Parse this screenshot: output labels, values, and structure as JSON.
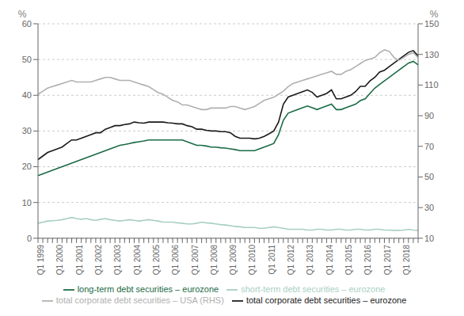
{
  "chart_data": {
    "type": "line",
    "ylabel": "%",
    "y2label": "%",
    "categories": [
      "Q1 1999",
      null,
      null,
      null,
      "Q1 2000",
      null,
      null,
      null,
      "Q1 2001",
      null,
      null,
      null,
      "Q1 2002",
      null,
      null,
      null,
      "Q1 2003",
      null,
      null,
      null,
      "Q1 2004",
      null,
      null,
      null,
      "Q1 2005",
      null,
      null,
      null,
      "Q1 2006",
      null,
      null,
      null,
      "Q1 2007",
      null,
      null,
      null,
      "Q1 2008",
      null,
      null,
      null,
      "Q1 2009",
      null,
      null,
      null,
      "Q1 2010",
      null,
      null,
      null,
      "Q1 2011",
      null,
      null,
      null,
      "Q1 2012",
      null,
      null,
      null,
      "Q1 2013",
      null,
      null,
      null,
      "Q1 2014",
      null,
      null,
      null,
      "Q1 2015",
      null,
      null,
      null,
      "Q1 2016",
      null,
      null,
      null,
      "Q1 2017",
      null,
      null,
      null,
      "Q1 2018",
      null,
      null,
      null
    ],
    "series": [
      {
        "name": "short-term debt securities – eurozone",
        "color": "#a8cfc4",
        "values": [
          4.2,
          4.5,
          4.8,
          4.9,
          5.0,
          5.2,
          5.5,
          5.8,
          5.5,
          5.3,
          5.5,
          5.2,
          5.0,
          5.3,
          5.5,
          5.2,
          5.0,
          4.8,
          5.0,
          5.2,
          5.0,
          4.8,
          5.0,
          5.2,
          5.0,
          4.8,
          4.5,
          4.5,
          4.5,
          4.3,
          4.2,
          4.0,
          4.0,
          4.2,
          4.5,
          4.3,
          4.2,
          4.0,
          3.8,
          3.7,
          3.5,
          3.3,
          3.2,
          3.0,
          3.0,
          3.0,
          2.8,
          2.8,
          3.0,
          3.2,
          3.0,
          2.8,
          2.5,
          2.5,
          2.5,
          2.5,
          2.3,
          2.3,
          2.5,
          2.5,
          2.3,
          2.3,
          2.5,
          2.5,
          2.3,
          2.3,
          2.5,
          2.5,
          2.3,
          2.3,
          2.5,
          2.5,
          2.3,
          2.3,
          2.2,
          2.2,
          2.3,
          2.5,
          2.3,
          2.2
        ]
      },
      {
        "name": "long-term debt securities – eurozone",
        "color": "#1a6b45",
        "values": [
          17.5,
          18.0,
          18.5,
          19.0,
          19.5,
          20.0,
          20.5,
          21.0,
          21.5,
          22.0,
          22.5,
          23.0,
          23.5,
          24.0,
          24.5,
          25.0,
          25.5,
          26.0,
          26.2,
          26.5,
          26.8,
          27.0,
          27.2,
          27.5,
          27.5,
          27.5,
          27.5,
          27.5,
          27.5,
          27.5,
          27.5,
          27.0,
          26.5,
          26.0,
          26.0,
          25.8,
          25.5,
          25.5,
          25.3,
          25.2,
          25.0,
          24.8,
          24.5,
          24.5,
          24.5,
          24.5,
          25.0,
          25.5,
          26.0,
          26.5,
          29.0,
          33.0,
          35.0,
          35.5,
          36.0,
          36.5,
          37.0,
          36.5,
          36.0,
          36.5,
          37.0,
          37.5,
          36.0,
          36.0,
          36.5,
          37.0,
          37.5,
          38.5,
          39.0,
          40.5,
          42.0,
          43.0,
          44.0,
          45.0,
          46.0,
          47.0,
          48.0,
          49.0,
          49.5,
          48.5
        ]
      },
      {
        "name": "total corporate debt securities – eurozone",
        "color": "#1a1a1a",
        "values": [
          22.0,
          23.0,
          24.0,
          24.5,
          25.0,
          25.5,
          26.5,
          27.5,
          27.5,
          28.0,
          28.5,
          29.0,
          29.5,
          29.5,
          30.5,
          31.0,
          31.5,
          31.5,
          31.8,
          32.0,
          32.5,
          32.3,
          32.2,
          32.5,
          32.5,
          32.5,
          32.5,
          32.3,
          32.2,
          32.0,
          32.0,
          31.5,
          31.2,
          30.5,
          30.5,
          30.2,
          30.0,
          30.0,
          29.8,
          29.8,
          29.5,
          28.5,
          28.0,
          28.0,
          28.0,
          27.8,
          28.0,
          28.5,
          29.2,
          30.0,
          32.5,
          37.5,
          39.5,
          40.0,
          40.5,
          41.0,
          41.5,
          40.8,
          39.5,
          40.0,
          40.5,
          41.5,
          39.0,
          39.0,
          39.5,
          40.0,
          41.0,
          42.5,
          42.5,
          44.0,
          45.0,
          46.5,
          47.0,
          48.0,
          49.0,
          50.0,
          51.0,
          52.0,
          52.5,
          51.0
        ]
      },
      {
        "name": "total corporate debt securities – USA (RHS)",
        "color": "#b0b0b0",
        "axis": "y2",
        "values": [
          104,
          106,
          108,
          109,
          110,
          111,
          112,
          113,
          112,
          112,
          112,
          112,
          113,
          114,
          115,
          115,
          114,
          113,
          113,
          113,
          112,
          111,
          110,
          109,
          107,
          105,
          104,
          102,
          100,
          99,
          97,
          97,
          96,
          95,
          94,
          94,
          95,
          95,
          95,
          95,
          96,
          96,
          95,
          94,
          95,
          96,
          98,
          100,
          101,
          102,
          104,
          106,
          109,
          111,
          112,
          113,
          114,
          115,
          116,
          117,
          118,
          119,
          117,
          117,
          119,
          120,
          122,
          124,
          126,
          127,
          128,
          131,
          133,
          132,
          128,
          126,
          128,
          130,
          131,
          128
        ]
      }
    ],
    "ylim": [
      0,
      60
    ],
    "yticks": [
      0,
      10,
      20,
      30,
      40,
      50,
      60
    ],
    "y2lim": [
      10,
      150
    ],
    "y2ticks": [
      10,
      30,
      50,
      70,
      90,
      110,
      130,
      150
    ],
    "grid": true,
    "legend": "bottom"
  }
}
